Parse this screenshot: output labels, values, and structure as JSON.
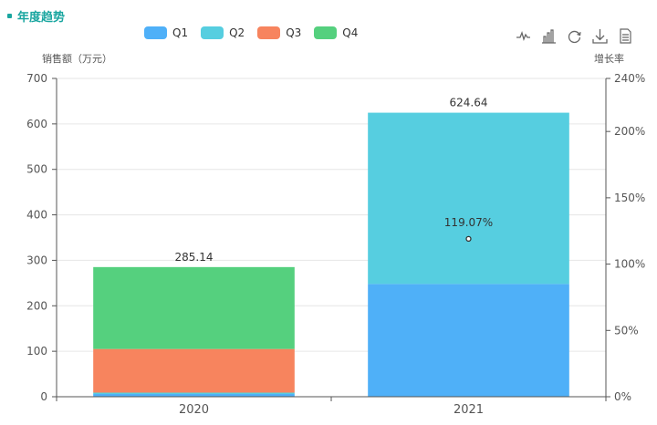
{
  "header": {
    "title": "年度趋势"
  },
  "legend": [
    {
      "name": "Q1",
      "color": "#4fb0f8"
    },
    {
      "name": "Q2",
      "color": "#56cee0"
    },
    {
      "name": "Q3",
      "color": "#f7845e"
    },
    {
      "name": "Q4",
      "color": "#55d07e"
    }
  ],
  "toolbox": [
    "line-chart-icon",
    "bar-chart-icon",
    "restore-icon",
    "download-icon",
    "data-view-icon"
  ],
  "chart_data": {
    "type": "bar",
    "stacked": true,
    "categories": [
      "2020",
      "2021"
    ],
    "series": [
      {
        "name": "Q1",
        "values": [
          6,
          248
        ]
      },
      {
        "name": "Q2",
        "values": [
          3,
          376.64
        ]
      },
      {
        "name": "Q3",
        "values": [
          96,
          0
        ]
      },
      {
        "name": "Q4",
        "values": [
          180.14,
          0
        ]
      }
    ],
    "totals": [
      "285.14",
      "624.64"
    ],
    "growth_rate": {
      "category": "2021",
      "value": 119.07,
      "label": "119.07%"
    },
    "ylabel": "销售额（万元）",
    "ylim": [
      0,
      700
    ],
    "yticks": [
      0,
      100,
      200,
      300,
      400,
      500,
      600,
      700
    ],
    "y2label": "增长率",
    "y2lim": [
      0,
      240
    ],
    "y2ticks": [
      "0%",
      "50%",
      "100%",
      "150%",
      "200%",
      "240%"
    ],
    "y2tick_values": [
      0,
      50,
      100,
      150,
      200,
      240
    ],
    "grid": true,
    "legend_position": "top"
  }
}
